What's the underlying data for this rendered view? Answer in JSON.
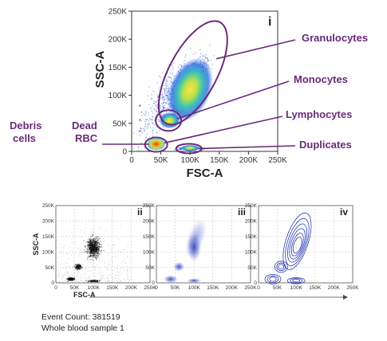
{
  "chart_data": [
    {
      "type": "scatter",
      "panel_label": "i",
      "xlabel": "FSC-A",
      "ylabel": "SSC-A",
      "xlim": [
        0,
        250000
      ],
      "ylim": [
        0,
        250000
      ],
      "x_ticks": [
        "0",
        "50K",
        "100K",
        "150K",
        "200K",
        "250K"
      ],
      "y_ticks": [
        "0",
        "50K",
        "100K",
        "150K",
        "200K",
        "250K"
      ],
      "style": "density heatmap dot plot",
      "populations": [
        {
          "name": "Granulocytes",
          "cx": 100000,
          "cy": 110000
        },
        {
          "name": "Monocytes",
          "cx": 65000,
          "cy": 55000
        },
        {
          "name": "Lymphocytes",
          "cx": 40000,
          "cy": 12000
        },
        {
          "name": "Duplicates",
          "cx": 100000,
          "cy": 5000
        }
      ],
      "annotations": [
        "Granulocytes",
        "Monocytes",
        "Lymphocytes",
        "Duplicates"
      ],
      "left_labels": [
        {
          "line1": "Debris",
          "line2": "cells"
        },
        {
          "line1": "Dead",
          "line2": "RBC"
        }
      ]
    },
    {
      "type": "scatter",
      "panel_label": "ii",
      "xlabel": "FSC-A",
      "ylabel": "SSC-A",
      "style": "black dot plot",
      "x_ticks": [
        "0",
        "50K",
        "100K",
        "150K",
        "200K",
        "250K"
      ],
      "y_ticks": [
        "0",
        "50K",
        "100K",
        "150K",
        "200K",
        "250K"
      ]
    },
    {
      "type": "scatter",
      "panel_label": "iii",
      "style": "density shading",
      "x_ticks": [
        "0",
        "50K",
        "100K",
        "150K",
        "200K",
        "250K"
      ],
      "y_ticks": [
        "0",
        "50K",
        "100K",
        "150K",
        "200K",
        "250K"
      ]
    },
    {
      "type": "scatter",
      "panel_label": "iv",
      "style": "contour plot",
      "x_ticks": [
        "0",
        "50K",
        "100K",
        "150K",
        "200K",
        "250K"
      ],
      "y_ticks": [
        "0",
        "50K",
        "100K",
        "150K",
        "200K",
        "250K"
      ]
    }
  ],
  "caption": {
    "event_count": "Event Count: 381519",
    "sample": "Whole blood sample 1"
  },
  "colors": {
    "annotation": "#6a2a7a",
    "dots": "#3a5bd0",
    "panel_blue": "#2c3fb0"
  }
}
